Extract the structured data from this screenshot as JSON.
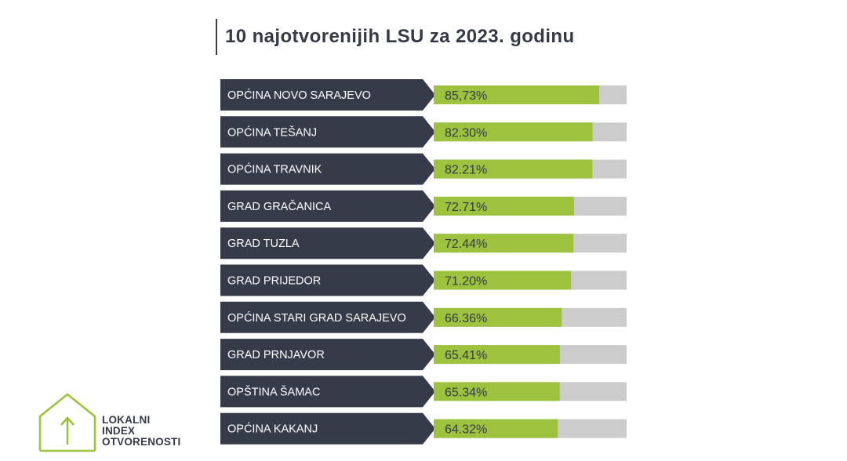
{
  "header": {
    "title": "10 najotvorenijih LSU za 2023. godinu"
  },
  "logo": {
    "line1": "LOKALNI",
    "line2": "INDEX",
    "line3": "OTVORENOSTI",
    "icon": "house-arrow-icon"
  },
  "colors": {
    "label_bg": "#363b4a",
    "bar_fill": "#9cc23e",
    "bar_track": "#cccccc",
    "text_dark": "#353a46"
  },
  "chart_data": {
    "type": "bar",
    "orientation": "horizontal",
    "categories": [
      "OPĆINA NOVO SARAJEVO",
      "OPĆINA TEŠANJ",
      "OPĆINA TRAVNIK",
      "GRAD GRAČANICA",
      "GRAD TUZLA",
      "GRAD PRIJEDOR",
      "OPĆINA STARI GRAD SARAJEVO",
      "GRAD PRNJAVOR",
      "OPŠTINA ŠAMAC",
      "OPĆINA KAKANJ"
    ],
    "values": [
      85.73,
      82.3,
      82.21,
      72.71,
      72.44,
      71.2,
      66.36,
      65.41,
      65.34,
      64.32
    ],
    "value_labels": [
      "85,73%",
      "82.30%",
      "82.21%",
      "72.71%",
      "72.44%",
      "71.20%",
      "66.36%",
      "65.41%",
      "65.34%",
      "64.32%"
    ],
    "xlim": [
      0,
      100
    ],
    "grid": false,
    "legend": "none"
  }
}
